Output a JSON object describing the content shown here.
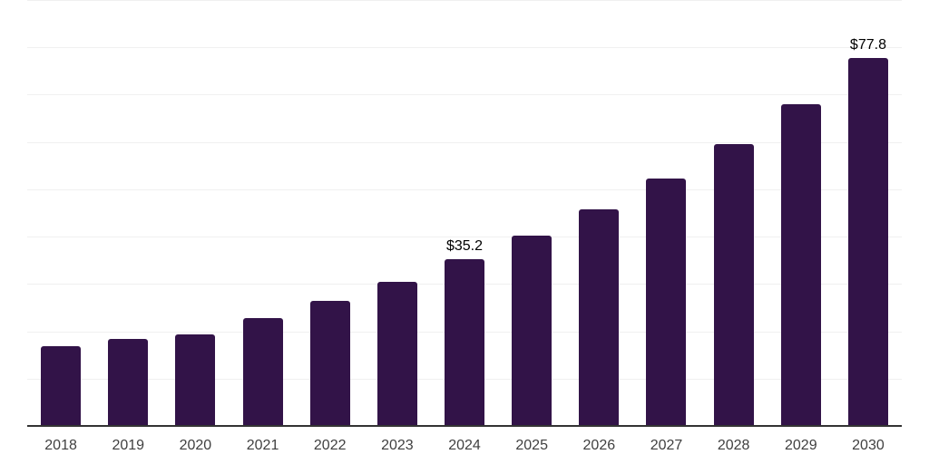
{
  "chart_data": {
    "type": "bar",
    "title": "",
    "xlabel": "",
    "ylabel": "",
    "categories": [
      "2018",
      "2019",
      "2020",
      "2021",
      "2022",
      "2023",
      "2024",
      "2025",
      "2026",
      "2027",
      "2028",
      "2029",
      "2030"
    ],
    "values": [
      16.8,
      18.3,
      19.3,
      22.8,
      26.4,
      30.4,
      35.2,
      40.2,
      45.7,
      52.2,
      59.5,
      68.0,
      77.8
    ],
    "data_labels": [
      {
        "category": "2024",
        "label": "$35.2"
      },
      {
        "category": "2030",
        "label": "$77.8"
      }
    ],
    "ylim": [
      0,
      90
    ],
    "grid_step": 10,
    "grid": "horizontal-only",
    "legend_position": "none",
    "colors": {
      "bar": "#321348",
      "gridline": "#f0f0f0",
      "axis_line": "#333333",
      "x_label": "#404040",
      "value_label": "#000000",
      "background": "#ffffff"
    }
  }
}
